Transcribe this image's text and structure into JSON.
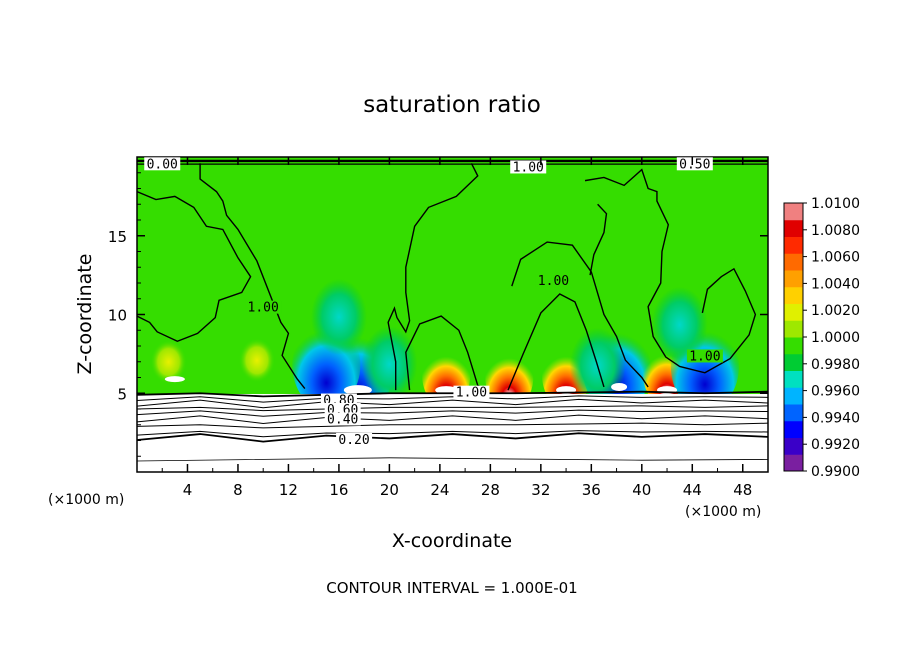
{
  "chart_data": {
    "type": "heatmap",
    "title": "saturation ratio",
    "xlabel": "X-coordinate",
    "ylabel": "Z-coordinate",
    "x_unit_label": "(×1000 m)",
    "x_unit_label_right": "(×1000 m)",
    "footer": "CONTOUR INTERVAL = 1.000E-01",
    "xlim": [
      0,
      50
    ],
    "ylim": [
      0,
      20
    ],
    "x_ticks": [
      4,
      8,
      12,
      16,
      20,
      24,
      28,
      32,
      36,
      40,
      44,
      48
    ],
    "y_ticks": [
      5,
      10,
      15
    ],
    "colorbar": {
      "range": [
        0.99,
        1.01
      ],
      "labels": [
        "1.0100",
        "1.0080",
        "1.0060",
        "1.0040",
        "1.0020",
        "1.0000",
        "0.9980",
        "0.9960",
        "0.9940",
        "0.9920",
        "0.9900"
      ],
      "colors": [
        "#7a1fa0",
        "#3a00c8",
        "#0000ff",
        "#0064ff",
        "#00b4ff",
        "#00e0c0",
        "#00cc33",
        "#35dd00",
        "#9ee800",
        "#e0f000",
        "#ffd000",
        "#ffa000",
        "#ff6a00",
        "#ff2a00",
        "#e00000",
        "#f08080"
      ]
    },
    "contour_labels": [
      {
        "text": "0.00",
        "x": 2,
        "y": 19.6
      },
      {
        "text": "1.00",
        "x": 31,
        "y": 19.4
      },
      {
        "text": "0.50",
        "x": 44.2,
        "y": 19.6
      },
      {
        "text": "1.00",
        "x": 10,
        "y": 10.5
      },
      {
        "text": "1.00",
        "x": 33,
        "y": 12.2
      },
      {
        "text": "1.00",
        "x": 45,
        "y": 7.4
      },
      {
        "text": "1.00",
        "x": 26.5,
        "y": 5.1
      },
      {
        "text": "0.80",
        "x": 16,
        "y": 4.6
      },
      {
        "text": "0.60",
        "x": 16.3,
        "y": 4.0
      },
      {
        "text": "0.40",
        "x": 16.3,
        "y": 3.4
      },
      {
        "text": "0.20",
        "x": 17.2,
        "y": 2.1
      }
    ],
    "field_anomalies": [
      {
        "x": 17.5,
        "y": 5.3,
        "value": 0.9915
      },
      {
        "x": 15.0,
        "y": 5.8,
        "value": 0.9945
      },
      {
        "x": 24.5,
        "y": 5.4,
        "value": 1.0075
      },
      {
        "x": 29.5,
        "y": 5.3,
        "value": 1.006
      },
      {
        "x": 34.0,
        "y": 5.4,
        "value": 1.007
      },
      {
        "x": 38.0,
        "y": 5.6,
        "value": 0.993
      },
      {
        "x": 42.0,
        "y": 5.5,
        "value": 1.007
      },
      {
        "x": 45.0,
        "y": 5.7,
        "value": 0.9945
      },
      {
        "x": 2.5,
        "y": 6.5,
        "value": 1.0035
      },
      {
        "x": 9.5,
        "y": 6.6,
        "value": 1.004
      },
      {
        "x": 36.5,
        "y": 5.9,
        "value": 0.9965
      },
      {
        "x": 20.0,
        "y": 6.0,
        "value": 0.9975
      },
      {
        "x": 43.0,
        "y": 8.5,
        "value": 0.9985
      },
      {
        "x": 16.0,
        "y": 9.0,
        "value": 0.9985
      }
    ]
  }
}
